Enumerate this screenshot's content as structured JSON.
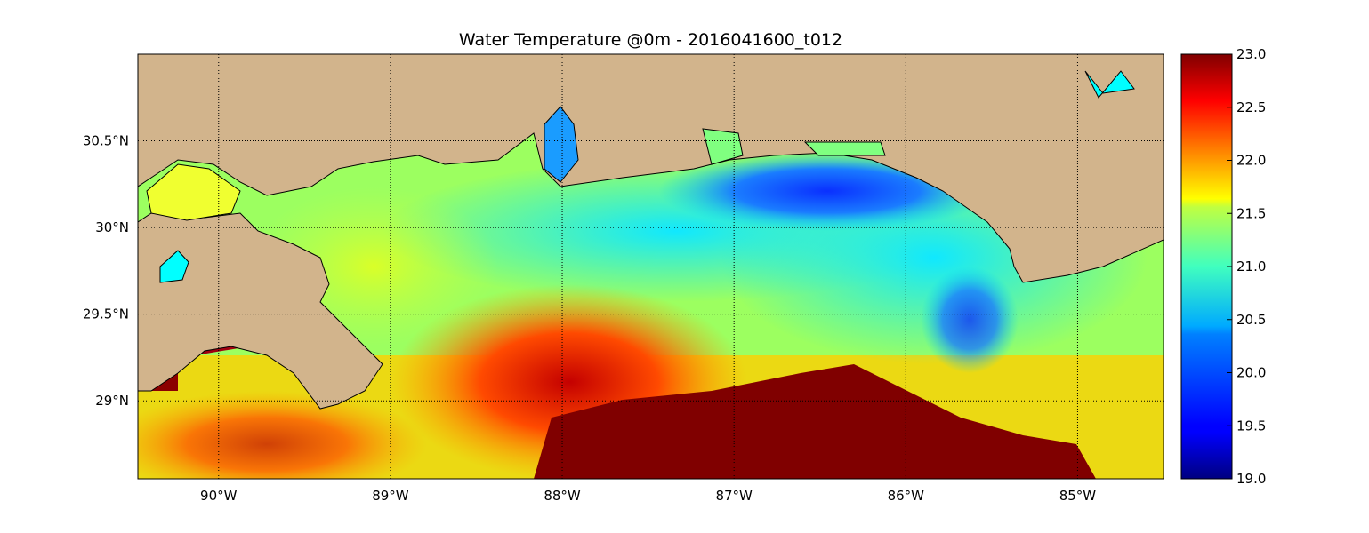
{
  "title": "Water Temperature @0m - 2016041600_t012",
  "map": {
    "lon_range": [
      -90.47,
      -84.5
    ],
    "lat_range": [
      28.55,
      31.0
    ],
    "lon_ticks": [
      {
        "value": -90,
        "label": "90°W"
      },
      {
        "value": -89,
        "label": "89°W"
      },
      {
        "value": -88,
        "label": "88°W"
      },
      {
        "value": -87,
        "label": "87°W"
      },
      {
        "value": -86,
        "label": "86°W"
      },
      {
        "value": -85,
        "label": "85°W"
      }
    ],
    "lat_ticks": [
      {
        "value": 30.5,
        "label": "30.5°N"
      },
      {
        "value": 30.0,
        "label": "30°N"
      },
      {
        "value": 29.5,
        "label": "29.5°N"
      },
      {
        "value": 29.0,
        "label": "29°N"
      }
    ],
    "grid": true,
    "land_color": "#d2b48c",
    "colormap": "jet"
  },
  "colorbar": {
    "min": 19.0,
    "max": 23.0,
    "ticks": [
      "19.0",
      "19.5",
      "20.0",
      "20.5",
      "21.0",
      "21.5",
      "22.0",
      "22.5",
      "23.0"
    ]
  }
}
